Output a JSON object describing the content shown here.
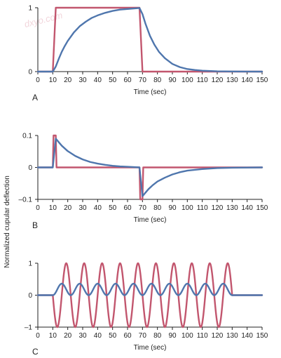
{
  "colors": {
    "stimulus": "#c2566e",
    "response": "#4f76ad",
    "axis": "#222222",
    "watermark": "#f2d6dc"
  },
  "watermark": "dxyo.com",
  "ylabel": "Normalized cupular deflection",
  "chart_data": [
    {
      "type": "line",
      "panel_label": "A",
      "xlabel": "Time (sec)",
      "xlim": [
        0,
        150
      ],
      "ylim": [
        0,
        1
      ],
      "xticks": [
        0,
        10,
        20,
        30,
        40,
        50,
        60,
        70,
        80,
        90,
        100,
        110,
        120,
        130,
        140,
        150
      ],
      "yticks": [
        0,
        1
      ],
      "ytick_labels": [
        "0",
        "1"
      ],
      "grid": false,
      "series": [
        {
          "role": "stimulus",
          "x": [
            0,
            10,
            12,
            68,
            70,
            150
          ],
          "y": [
            0,
            0,
            1,
            1,
            0,
            0
          ]
        },
        {
          "role": "response",
          "x": [
            0,
            10,
            12,
            14,
            16,
            18,
            20,
            24,
            28,
            32,
            36,
            40,
            45,
            50,
            55,
            60,
            65,
            68,
            70,
            72,
            75,
            78,
            81,
            85,
            90,
            95,
            100,
            105,
            110,
            120,
            130,
            140,
            150
          ],
          "y": [
            0,
            0,
            0.08,
            0.2,
            0.31,
            0.4,
            0.48,
            0.61,
            0.71,
            0.78,
            0.84,
            0.88,
            0.92,
            0.95,
            0.97,
            0.98,
            0.99,
            0.995,
            0.9,
            0.75,
            0.56,
            0.42,
            0.31,
            0.21,
            0.12,
            0.07,
            0.04,
            0.025,
            0.015,
            0.005,
            0.002,
            0.001,
            0
          ]
        }
      ]
    },
    {
      "type": "line",
      "panel_label": "B",
      "xlabel": "Time (sec)",
      "xlim": [
        0,
        150
      ],
      "ylim": [
        -0.1,
        0.1
      ],
      "xticks": [
        0,
        10,
        20,
        30,
        40,
        50,
        60,
        70,
        80,
        90,
        100,
        110,
        120,
        130,
        140,
        150
      ],
      "yticks": [
        -0.1,
        0,
        0.1
      ],
      "ytick_labels": [
        "–0.1",
        "0",
        "0.1"
      ],
      "grid": false,
      "series": [
        {
          "role": "stimulus",
          "x": [
            0,
            10,
            10.5,
            12,
            12.5,
            68,
            68.5,
            70,
            70.5,
            150
          ],
          "y": [
            0,
            0,
            0.1,
            0.1,
            0,
            0,
            -0.1,
            -0.1,
            0,
            0
          ]
        },
        {
          "role": "response",
          "x": [
            0,
            10,
            12,
            14,
            16,
            20,
            25,
            30,
            35,
            40,
            45,
            50,
            55,
            60,
            68,
            70,
            72,
            74,
            77,
            80,
            85,
            90,
            95,
            100,
            110,
            120,
            130,
            150
          ],
          "y": [
            0,
            0,
            0.09,
            0.079,
            0.068,
            0.051,
            0.036,
            0.025,
            0.017,
            0.012,
            0.008,
            0.005,
            0.003,
            0.002,
            0,
            -0.09,
            -0.079,
            -0.068,
            -0.055,
            -0.044,
            -0.032,
            -0.022,
            -0.015,
            -0.01,
            -0.005,
            -0.002,
            -0.001,
            0
          ]
        }
      ]
    },
    {
      "type": "line",
      "panel_label": "C",
      "xlabel": "Time (sec)",
      "xlim": [
        0,
        150
      ],
      "ylim": [
        -1,
        1
      ],
      "xticks": [
        0,
        10,
        20,
        30,
        40,
        50,
        60,
        70,
        80,
        90,
        100,
        110,
        120,
        130,
        140,
        150
      ],
      "yticks": [
        -1,
        0,
        1
      ],
      "ytick_labels": [
        "–1",
        "0",
        "1"
      ],
      "grid": false,
      "series": [
        {
          "role": "stimulus",
          "type": "sinusoid",
          "baseline_before": [
            0,
            10
          ],
          "baseline_after": [
            130,
            150
          ],
          "amplitude": 1,
          "period_sec": 12,
          "t_start": 10,
          "t_end": 130,
          "phase_deg": 180
        },
        {
          "role": "response",
          "type": "sinusoid",
          "baseline_before": [
            0,
            10
          ],
          "baseline_after": [
            130,
            150
          ],
          "amplitude": 0.18,
          "period_sec": 12,
          "t_start": 10,
          "t_end": 130,
          "phase_deg": 270,
          "decay_after_sec": 4
        }
      ]
    }
  ]
}
